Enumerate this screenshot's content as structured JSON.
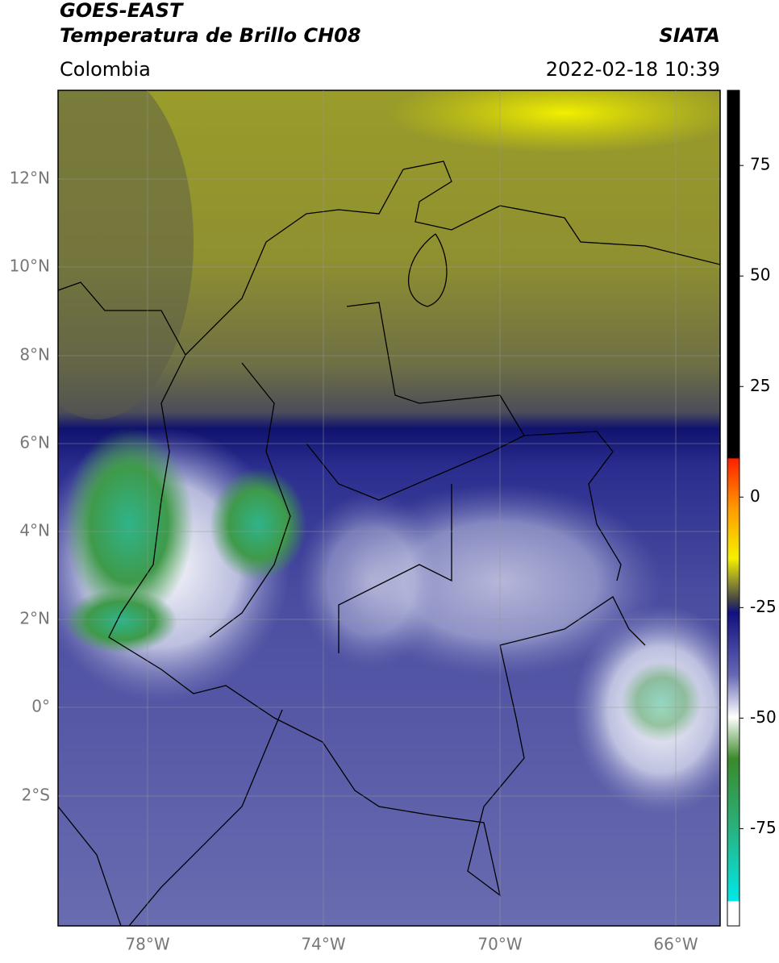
{
  "header": {
    "title": "GOES-EAST",
    "subtitle": "Temperatura de Brillo CH08",
    "region": "Colombia",
    "source": "SIATA",
    "datetime": "2022-02-18 10:39"
  },
  "map": {
    "lat_ticks": [
      "12°N",
      "10°N",
      "8°N",
      "6°N",
      "4°N",
      "2°N",
      "0°",
      "2°S"
    ],
    "lon_ticks": [
      "78°W",
      "74°W",
      "70°W",
      "66°W"
    ]
  },
  "colorbar": {
    "lim": [
      -97,
      92
    ],
    "ticks": [
      75,
      50,
      25,
      0,
      -25,
      -50,
      -75
    ]
  }
}
